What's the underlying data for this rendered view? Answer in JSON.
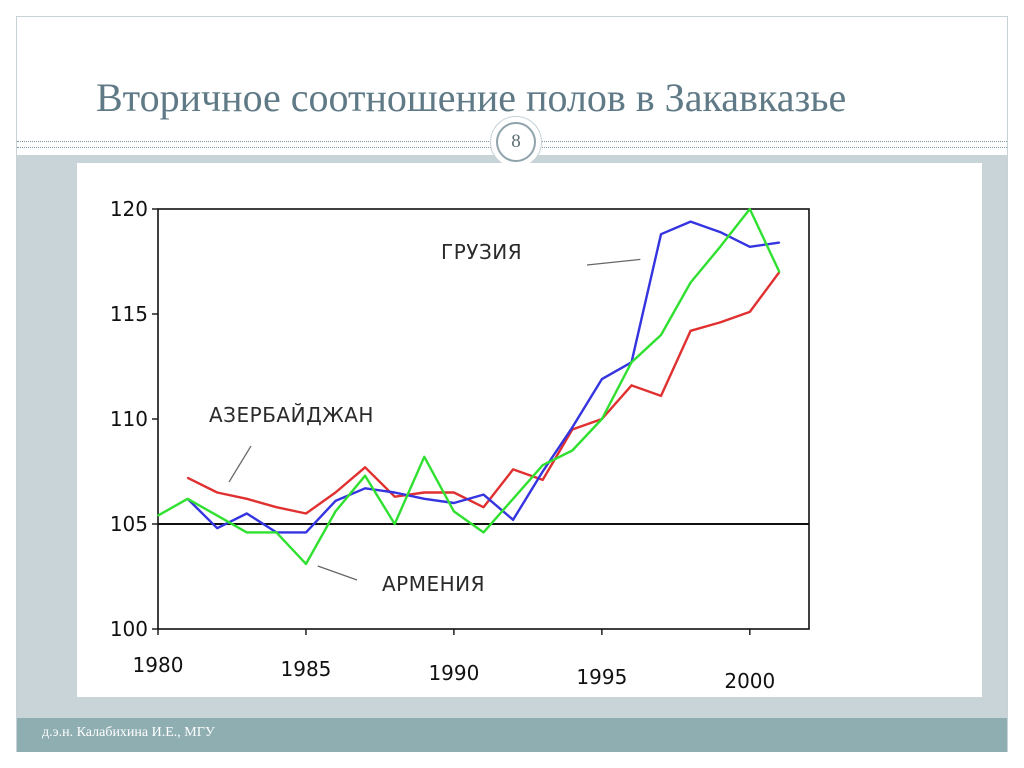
{
  "slide": {
    "title": "Вторичное соотношение полов в Закавказье",
    "page_number": "8",
    "footer": "д.э.н. Калабихина И.Е., МГУ",
    "colors": {
      "title": "#5f7a86",
      "band": "#c9d4d8",
      "footer_band": "#8faeb2"
    }
  },
  "chart_data": {
    "type": "line",
    "title": "",
    "xlabel": "",
    "ylabel": "",
    "xlim": [
      1980,
      2002
    ],
    "ylim": [
      100,
      120
    ],
    "x_ticks": [
      "1980",
      "1985",
      "1990",
      "1995",
      "2000"
    ],
    "y_ticks": [
      "100",
      "105",
      "110",
      "115",
      "120"
    ],
    "reference_line": 105,
    "grid": false,
    "series": [
      {
        "name": "АЗЕРБАЙДЖАН",
        "color": "#e03030",
        "x": [
          1981,
          1982,
          1983,
          1984,
          1985,
          1986,
          1987,
          1988,
          1989,
          1990,
          1991,
          1992,
          1993,
          1994,
          1995,
          1996,
          1997,
          1998,
          1999,
          2000,
          2001
        ],
        "y": [
          107.2,
          106.5,
          106.2,
          105.8,
          105.5,
          106.5,
          107.7,
          106.3,
          106.5,
          106.5,
          105.8,
          107.6,
          107.1,
          109.5,
          110.0,
          111.6,
          111.1,
          114.2,
          114.6,
          115.1,
          117.0
        ]
      },
      {
        "name": "ГРУЗИЯ",
        "color": "#3434e0",
        "x": [
          1981,
          1982,
          1983,
          1984,
          1985,
          1986,
          1987,
          1988,
          1989,
          1990,
          1991,
          1992,
          1993,
          1994,
          1995,
          1996,
          1997,
          1998,
          1999,
          2000,
          2001
        ],
        "y": [
          106.2,
          104.8,
          105.5,
          104.6,
          104.6,
          106.1,
          106.7,
          106.5,
          106.2,
          106.0,
          106.4,
          105.2,
          107.5,
          109.6,
          111.9,
          112.7,
          118.8,
          119.4,
          118.9,
          118.2,
          118.4
        ]
      },
      {
        "name": "АРМЕНИЯ",
        "color": "#30e030",
        "x": [
          1980,
          1981,
          1982,
          1983,
          1984,
          1985,
          1986,
          1987,
          1988,
          1989,
          1990,
          1991,
          1992,
          1993,
          1994,
          1995,
          1996,
          1997,
          1998,
          1999,
          2000,
          2001
        ],
        "y": [
          105.4,
          106.2,
          105.4,
          104.6,
          104.6,
          103.1,
          105.6,
          107.3,
          105.0,
          108.2,
          105.6,
          104.6,
          106.2,
          107.8,
          108.5,
          110.0,
          112.7,
          114.0,
          116.5,
          118.2,
          120.0,
          117.0
        ]
      }
    ],
    "annotations": [
      {
        "text": "ГРУЗИЯ",
        "series": "ГРУЗИЯ",
        "x": 1996.3,
        "y": 117.6
      },
      {
        "text": "АЗЕРБАЙДЖАН",
        "series": "АЗЕРБАЙДЖАН",
        "x": 1982.4,
        "y": 107.0
      },
      {
        "text": "АРМЕНИЯ",
        "series": "АРМЕНИЯ",
        "x": 1985.4,
        "y": 103.0
      }
    ]
  }
}
